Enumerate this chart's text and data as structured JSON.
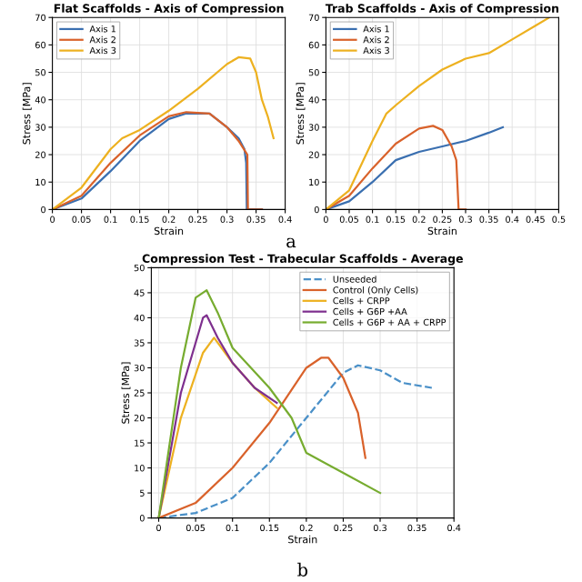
{
  "chart_data": [
    {
      "type": "line",
      "title": "Flat Scaffolds - Axis of Compression",
      "xlabel": "Strain",
      "ylabel": "Stress [MPa]",
      "xlim": [
        0,
        0.4
      ],
      "xticks": [
        0,
        0.05,
        0.1,
        0.15,
        0.2,
        0.25,
        0.3,
        0.35,
        0.4
      ],
      "ylim": [
        0,
        70
      ],
      "yticks": [
        0,
        10,
        20,
        30,
        40,
        50,
        60,
        70
      ],
      "grid": true,
      "legend": "top left",
      "annotations": [
        "a"
      ],
      "series": [
        {
          "name": "Axis 1",
          "color": "#3a6fb0",
          "x": [
            0,
            0.05,
            0.1,
            0.15,
            0.2,
            0.23,
            0.27,
            0.3,
            0.32,
            0.33,
            0.333,
            0.334,
            0.36
          ],
          "values": [
            0,
            4,
            14,
            25,
            33,
            35,
            35,
            30,
            26,
            22,
            17,
            0,
            0
          ]
        },
        {
          "name": "Axis 2",
          "color": "#d9622b",
          "x": [
            0,
            0.05,
            0.1,
            0.15,
            0.2,
            0.23,
            0.27,
            0.3,
            0.32,
            0.335,
            0.336,
            0.36
          ],
          "values": [
            0,
            5,
            17,
            27,
            34,
            35.5,
            35,
            30,
            25,
            20,
            0,
            0
          ]
        },
        {
          "name": "Axis 3",
          "color": "#edb120",
          "x": [
            0,
            0.05,
            0.1,
            0.12,
            0.15,
            0.2,
            0.25,
            0.3,
            0.32,
            0.34,
            0.35,
            0.36,
            0.37,
            0.38
          ],
          "values": [
            0,
            8,
            22,
            26,
            29,
            36,
            44,
            53,
            55.5,
            55,
            50,
            40,
            34,
            26
          ]
        }
      ]
    },
    {
      "type": "line",
      "title": "Trab Scaffolds - Axis of Compression",
      "xlabel": "Strain",
      "ylabel": "Stress [MPa]",
      "xlim": [
        0,
        0.5
      ],
      "xticks": [
        0,
        0.05,
        0.1,
        0.15,
        0.2,
        0.25,
        0.3,
        0.35,
        0.4,
        0.45,
        0.5
      ],
      "ylim": [
        0,
        70
      ],
      "yticks": [
        0,
        10,
        20,
        30,
        40,
        50,
        60,
        70
      ],
      "grid": true,
      "legend": "top left",
      "series": [
        {
          "name": "Axis 1",
          "color": "#3a6fb0",
          "x": [
            0,
            0.05,
            0.1,
            0.15,
            0.2,
            0.25,
            0.3,
            0.35,
            0.38
          ],
          "values": [
            0,
            3,
            10,
            18,
            21,
            23,
            25,
            28,
            30
          ]
        },
        {
          "name": "Axis 2",
          "color": "#d9622b",
          "x": [
            0,
            0.05,
            0.1,
            0.15,
            0.2,
            0.23,
            0.25,
            0.27,
            0.28,
            0.285,
            0.3
          ],
          "values": [
            0,
            5,
            15,
            24,
            29.5,
            30.5,
            29,
            23,
            18,
            0,
            0
          ]
        },
        {
          "name": "Axis 3",
          "color": "#edb120",
          "x": [
            0,
            0.05,
            0.1,
            0.13,
            0.15,
            0.2,
            0.25,
            0.3,
            0.35,
            0.4,
            0.45,
            0.48
          ],
          "values": [
            0,
            7,
            25,
            35,
            38,
            45,
            51,
            55,
            57,
            62,
            67,
            70
          ]
        }
      ]
    },
    {
      "type": "line",
      "title": "Compression Test - Trabecular Scaffolds - Average",
      "xlabel": "Strain",
      "ylabel": "Stress [MPa]",
      "xlim": [
        -0.01,
        0.4
      ],
      "xticks": [
        0,
        0.05,
        0.1,
        0.15,
        0.2,
        0.25,
        0.3,
        0.35,
        0.4
      ],
      "ylim": [
        0,
        50
      ],
      "yticks": [
        0,
        5,
        10,
        15,
        20,
        25,
        30,
        35,
        40,
        45,
        50
      ],
      "grid": true,
      "legend": "top right",
      "annotations": [
        "b"
      ],
      "series": [
        {
          "name": "Unseeded",
          "color": "#4a90c8",
          "line_style": "dashed",
          "x": [
            0,
            0.05,
            0.1,
            0.15,
            0.2,
            0.25,
            0.27,
            0.3,
            0.33,
            0.37
          ],
          "values": [
            0,
            1,
            4,
            11,
            20,
            29,
            30.5,
            29.5,
            27,
            26
          ]
        },
        {
          "name": "Control (Only Cells)",
          "color": "#d9622b",
          "x": [
            0,
            0.05,
            0.1,
            0.15,
            0.2,
            0.22,
            0.23,
            0.25,
            0.27,
            0.28
          ],
          "values": [
            0,
            3,
            10,
            19,
            30,
            32,
            32,
            28,
            21,
            12
          ]
        },
        {
          "name": "Cells + CRPP",
          "color": "#edb120",
          "x": [
            0,
            0.03,
            0.06,
            0.075,
            0.1,
            0.13,
            0.16
          ],
          "values": [
            0,
            20,
            33,
            36,
            31,
            26,
            22
          ]
        },
        {
          "name": "Cells + G6P +AA",
          "color": "#7e2f8e",
          "x": [
            0,
            0.03,
            0.06,
            0.065,
            0.08,
            0.1,
            0.13,
            0.16
          ],
          "values": [
            0,
            25,
            40,
            40.5,
            36,
            31,
            26,
            23
          ]
        },
        {
          "name": "Cells + G6P + AA + CRPP",
          "color": "#77ac30",
          "x": [
            0,
            0.03,
            0.05,
            0.065,
            0.08,
            0.1,
            0.15,
            0.18,
            0.2,
            0.25,
            0.3
          ],
          "values": [
            0,
            30,
            44,
            45.5,
            41,
            34,
            26,
            20,
            13,
            9,
            5
          ]
        }
      ]
    }
  ]
}
